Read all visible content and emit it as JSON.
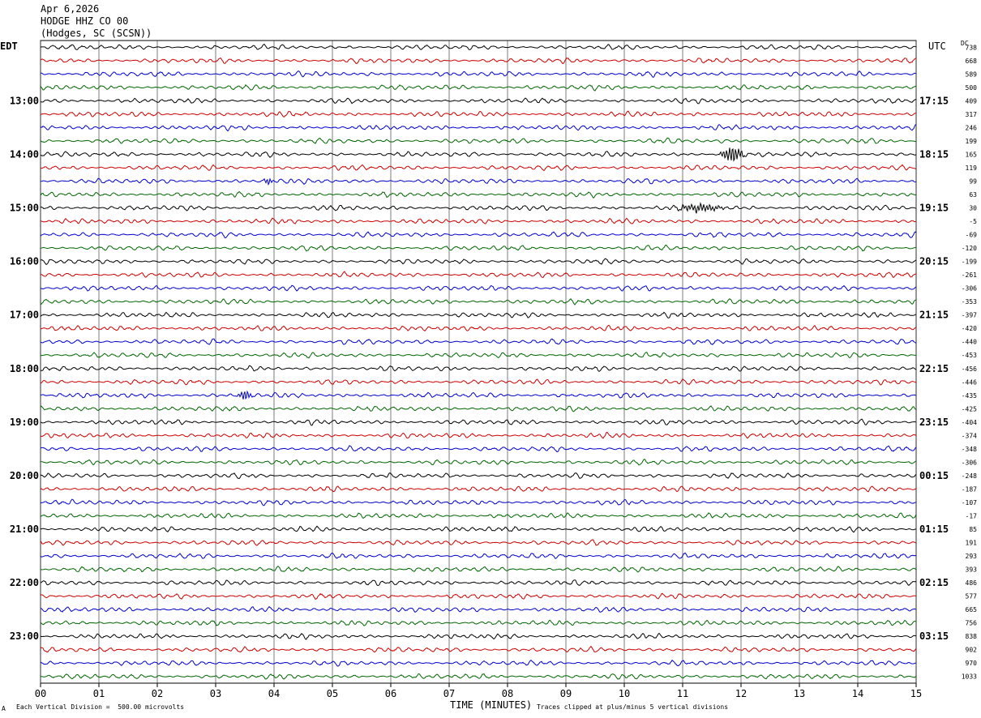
{
  "header": {
    "date": "Apr 6,2026",
    "station": "HODGE HHZ CO 00",
    "location": "(Hodges, SC (SCSN))"
  },
  "labels": {
    "left_zone": "EDT",
    "right_zone": "UTC",
    "dc": "DC",
    "x_axis_title": "TIME (MINUTES)",
    "scale_note": "Each Vertical Division =  500.00 microvolts",
    "clip_note": "Traces clipped at plus/minus 5 vertical divisions",
    "corner_mark": "A"
  },
  "colors": {
    "trace_cycle": [
      "#000000",
      "#cc0000",
      "#0000cc",
      "#006600"
    ],
    "grid": "#000000",
    "background": "#ffffff"
  },
  "chart_data": {
    "type": "line",
    "title": "HODGE HHZ CO 00",
    "xlabel": "TIME (MINUTES)",
    "xlim": [
      0,
      15
    ],
    "x_ticks": [
      "00",
      "01",
      "02",
      "03",
      "04",
      "05",
      "06",
      "07",
      "08",
      "09",
      "10",
      "11",
      "12",
      "13",
      "14",
      "15"
    ],
    "trace_count": 48,
    "rows_per_hour": 4,
    "left_hour_labels": [
      "13:00",
      "14:00",
      "15:00",
      "16:00",
      "17:00",
      "18:00",
      "19:00",
      "20:00",
      "21:00",
      "22:00",
      "23:00"
    ],
    "right_hour_labels": [
      "17:15",
      "18:15",
      "19:15",
      "20:15",
      "21:15",
      "22:15",
      "23:15",
      "00:15",
      "01:15",
      "02:15",
      "03:15"
    ],
    "hour_label_start_trace": 4,
    "dc_offsets": [
      738,
      668,
      589,
      500,
      409,
      317,
      246,
      199,
      165,
      119,
      99,
      63,
      30,
      -5,
      -69,
      -120,
      -199,
      -261,
      -306,
      -353,
      -397,
      -420,
      -440,
      -453,
      -456,
      -446,
      -435,
      -425,
      -404,
      -374,
      -348,
      -306,
      -248,
      -187,
      -107,
      -17,
      85,
      191,
      293,
      393,
      486,
      577,
      665,
      756,
      838,
      902,
      970,
      1033
    ],
    "events": [
      {
        "trace": 8,
        "minute": 11.85,
        "amp": 3.2,
        "width": 0.25
      },
      {
        "trace": 12,
        "minute": 11.3,
        "amp": 1.6,
        "width": 0.5
      },
      {
        "trace": 26,
        "minute": 3.5,
        "amp": 2.0,
        "width": 0.15
      },
      {
        "trace": 10,
        "minute": 3.9,
        "amp": 1.4,
        "width": 0.1
      }
    ]
  }
}
